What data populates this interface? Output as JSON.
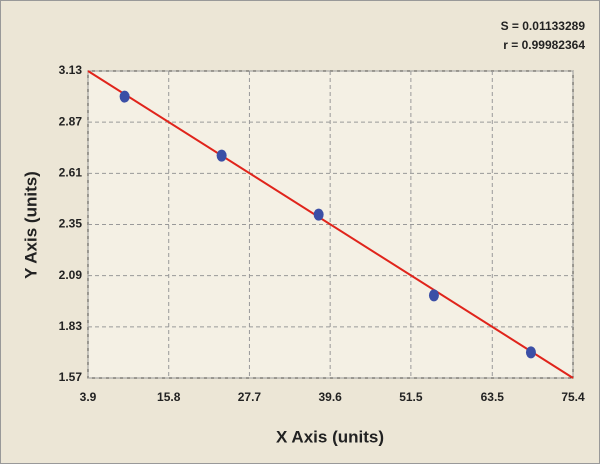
{
  "chart_data": {
    "type": "scatter",
    "annotations": [
      "S = 0.01133289",
      "r = 0.99982364"
    ],
    "x_label": "X Axis (units)",
    "y_label": "Y Axis (units)",
    "series": [
      {
        "color": "#3b4fa6",
        "x": [
          9.3,
          23.6,
          37.9,
          54.9,
          69.2
        ],
        "values": [
          3.0,
          2.7,
          2.4,
          1.99,
          1.7
        ]
      }
    ],
    "fit": {
      "color": "#e0241b",
      "x": [
        3.9,
        75.4
      ],
      "values": [
        3.13,
        1.57
      ]
    },
    "xlim": [
      3.9,
      75.4
    ],
    "xticks": [
      3.9,
      15.8,
      27.7,
      39.6,
      51.5,
      63.5,
      75.4
    ],
    "ylim": [
      1.57,
      3.13
    ],
    "yticks": [
      1.57,
      1.83,
      2.09,
      2.35,
      2.61,
      2.87,
      3.13
    ],
    "grid": true
  }
}
